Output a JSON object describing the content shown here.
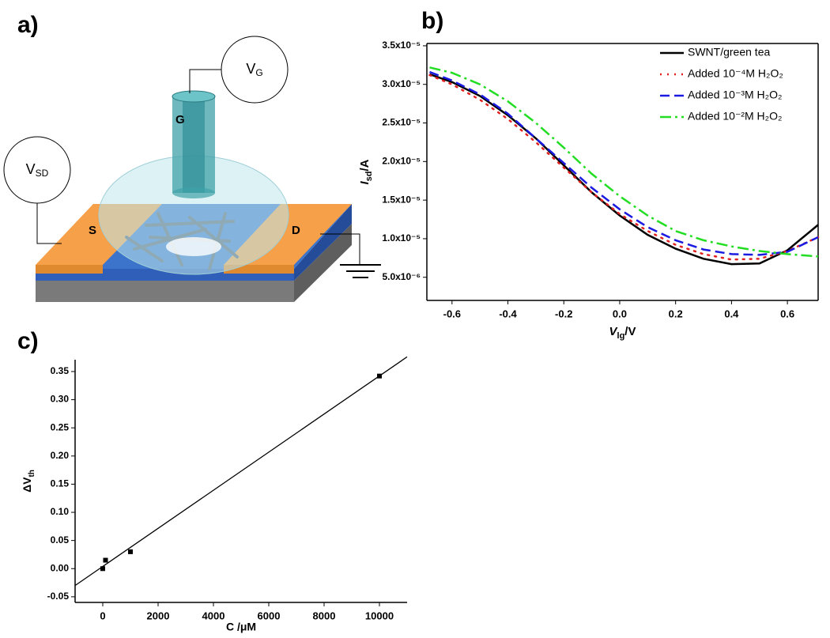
{
  "figure_labels": [
    "a)",
    "b)",
    "c)"
  ],
  "diagram": {
    "gate_voltage": [
      "V",
      "G"
    ],
    "source_drain_voltage": [
      "V",
      "SD"
    ],
    "gate": "G",
    "source": "S",
    "drain": "D"
  },
  "chart_data": [
    {
      "type": "line",
      "xlabel": [
        "V",
        "lg",
        "/V"
      ],
      "ylabel": [
        "I",
        "sd",
        "/A"
      ],
      "x": [
        -0.68,
        -0.6,
        -0.5,
        -0.4,
        -0.3,
        -0.2,
        -0.1,
        0,
        0.1,
        0.2,
        0.3,
        0.4,
        0.5,
        0.6,
        0.71
      ],
      "series": [
        {
          "name": "SWNT/green tea",
          "color": "#000000",
          "style": "solid",
          "values": [
            3.13e-05,
            3.03e-05,
            2.85e-05,
            2.6e-05,
            2.3e-05,
            1.95e-05,
            1.6e-05,
            1.3e-05,
            1.05e-05,
            8.7e-06,
            7.4e-06,
            6.7e-06,
            6.8e-06,
            8.5e-06,
            1.18e-05
          ]
        },
        {
          "name": "Added 10⁻⁴M H₂O₂",
          "color": "#e32020",
          "style": "dotted",
          "values": [
            3.12e-05,
            3e-05,
            2.8e-05,
            2.55e-05,
            2.25e-05,
            1.92e-05,
            1.6e-05,
            1.32e-05,
            1.1e-05,
            9.2e-06,
            8e-06,
            7.3e-06,
            7.4e-06,
            8.4e-06,
            1.02e-05
          ]
        },
        {
          "name": "Added 10⁻³M H₂O₂",
          "color": "#1a1ae0",
          "style": "dashed",
          "values": [
            3.16e-05,
            3.05e-05,
            2.87e-05,
            2.62e-05,
            2.3e-05,
            1.98e-05,
            1.66e-05,
            1.38e-05,
            1.15e-05,
            9.8e-06,
            8.6e-06,
            8e-06,
            7.9e-06,
            8.3e-06,
            1.02e-05
          ]
        },
        {
          "name": "Added 10⁻²M H₂O₂",
          "color": "#22dd22",
          "style": "dashdot",
          "values": [
            3.22e-05,
            3.15e-05,
            3e-05,
            2.78e-05,
            2.5e-05,
            2.18e-05,
            1.84e-05,
            1.55e-05,
            1.3e-05,
            1.1e-05,
            9.8e-06,
            9e-06,
            8.4e-06,
            8e-06,
            7.7e-06
          ]
        }
      ],
      "xlim": [
        -0.69,
        0.71
      ],
      "ylim": [
        2e-06,
        3.53e-05
      ],
      "xticks": [
        -0.6,
        -0.4,
        -0.2,
        {
          "value": 0,
          "label": "0.0"
        },
        0.2,
        0.4,
        0.6
      ],
      "yticks": [
        {
          "value": 5e-06,
          "label": "5.0x10⁻⁶"
        },
        {
          "value": 1e-05,
          "label": "1.0x10⁻⁵"
        },
        {
          "value": 1.5e-05,
          "label": "1.5x10⁻⁵"
        },
        {
          "value": 2e-05,
          "label": "2.0x10⁻⁵"
        },
        {
          "value": 2.5e-05,
          "label": "2.5x10⁻⁵"
        },
        {
          "value": 3e-05,
          "label": "3.0x10⁻⁵"
        },
        {
          "value": 3.5e-05,
          "label": "3.5x10⁻⁵"
        }
      ],
      "legend": "upper right"
    },
    {
      "type": "scatter",
      "xlabel": "C /μM",
      "ylabel": [
        "ΔV",
        "th"
      ],
      "x": [
        0,
        100,
        1000,
        10000
      ],
      "values": [
        0,
        0.015,
        0.03,
        0.342
      ],
      "color": "#000000",
      "fit": {
        "x": [
          -1000,
          11000
        ],
        "values": [
          -0.03,
          0.376
        ]
      },
      "xlim": [
        -1000,
        11000
      ],
      "ylim": [
        -0.06,
        0.371
      ],
      "xticks": [
        0,
        2000,
        4000,
        6000,
        8000,
        10000
      ],
      "yticks": [
        -0.05,
        {
          "value": 0,
          "label": "0.00"
        },
        0.05,
        {
          "value": 0.1,
          "label": "0.10"
        },
        0.15,
        {
          "value": 0.2,
          "label": "0.20"
        },
        0.25,
        {
          "value": 0.3,
          "label": "0.30"
        },
        0.35
      ]
    }
  ]
}
